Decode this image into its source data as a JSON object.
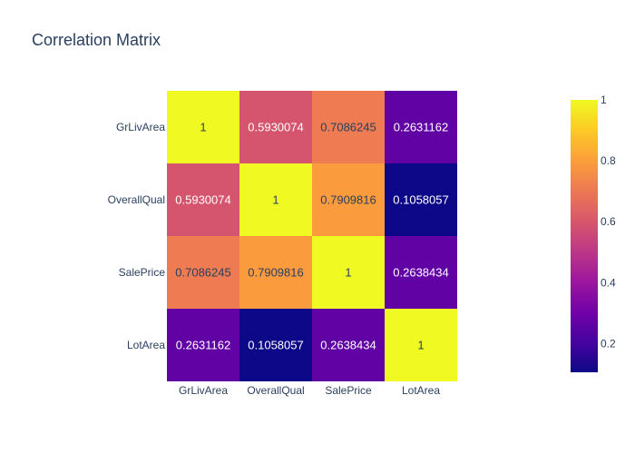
{
  "chart_data": {
    "type": "heatmap",
    "title": "Correlation Matrix",
    "x_labels": [
      "GrLivArea",
      "OverallQual",
      "SalePrice",
      "LotArea"
    ],
    "y_labels": [
      "GrLivArea",
      "OverallQual",
      "SalePrice",
      "LotArea"
    ],
    "z": [
      [
        1,
        0.5930074,
        0.7086245,
        0.2631162
      ],
      [
        0.5930074,
        1,
        0.7909816,
        0.1058057
      ],
      [
        0.7086245,
        0.7909816,
        1,
        0.2638434
      ],
      [
        0.2631162,
        0.1058057,
        0.2638434,
        1
      ]
    ],
    "text": [
      [
        "1",
        "0.5930074",
        "0.7086245",
        "0.2631162"
      ],
      [
        "0.5930074",
        "1",
        "0.7909816",
        "0.1058057"
      ],
      [
        "0.7086245",
        "0.7909816",
        "1",
        "0.2638434"
      ],
      [
        "0.2631162",
        "0.1058057",
        "0.2638434",
        "1"
      ]
    ],
    "colorscale": "plasma",
    "zrange": [
      0.1058057,
      1
    ],
    "colorbar_ticks": [
      "0.2",
      "0.4",
      "0.6",
      "0.8",
      "1"
    ],
    "colorbar_tick_values": [
      0.2,
      0.4,
      0.6,
      0.8,
      1
    ]
  }
}
